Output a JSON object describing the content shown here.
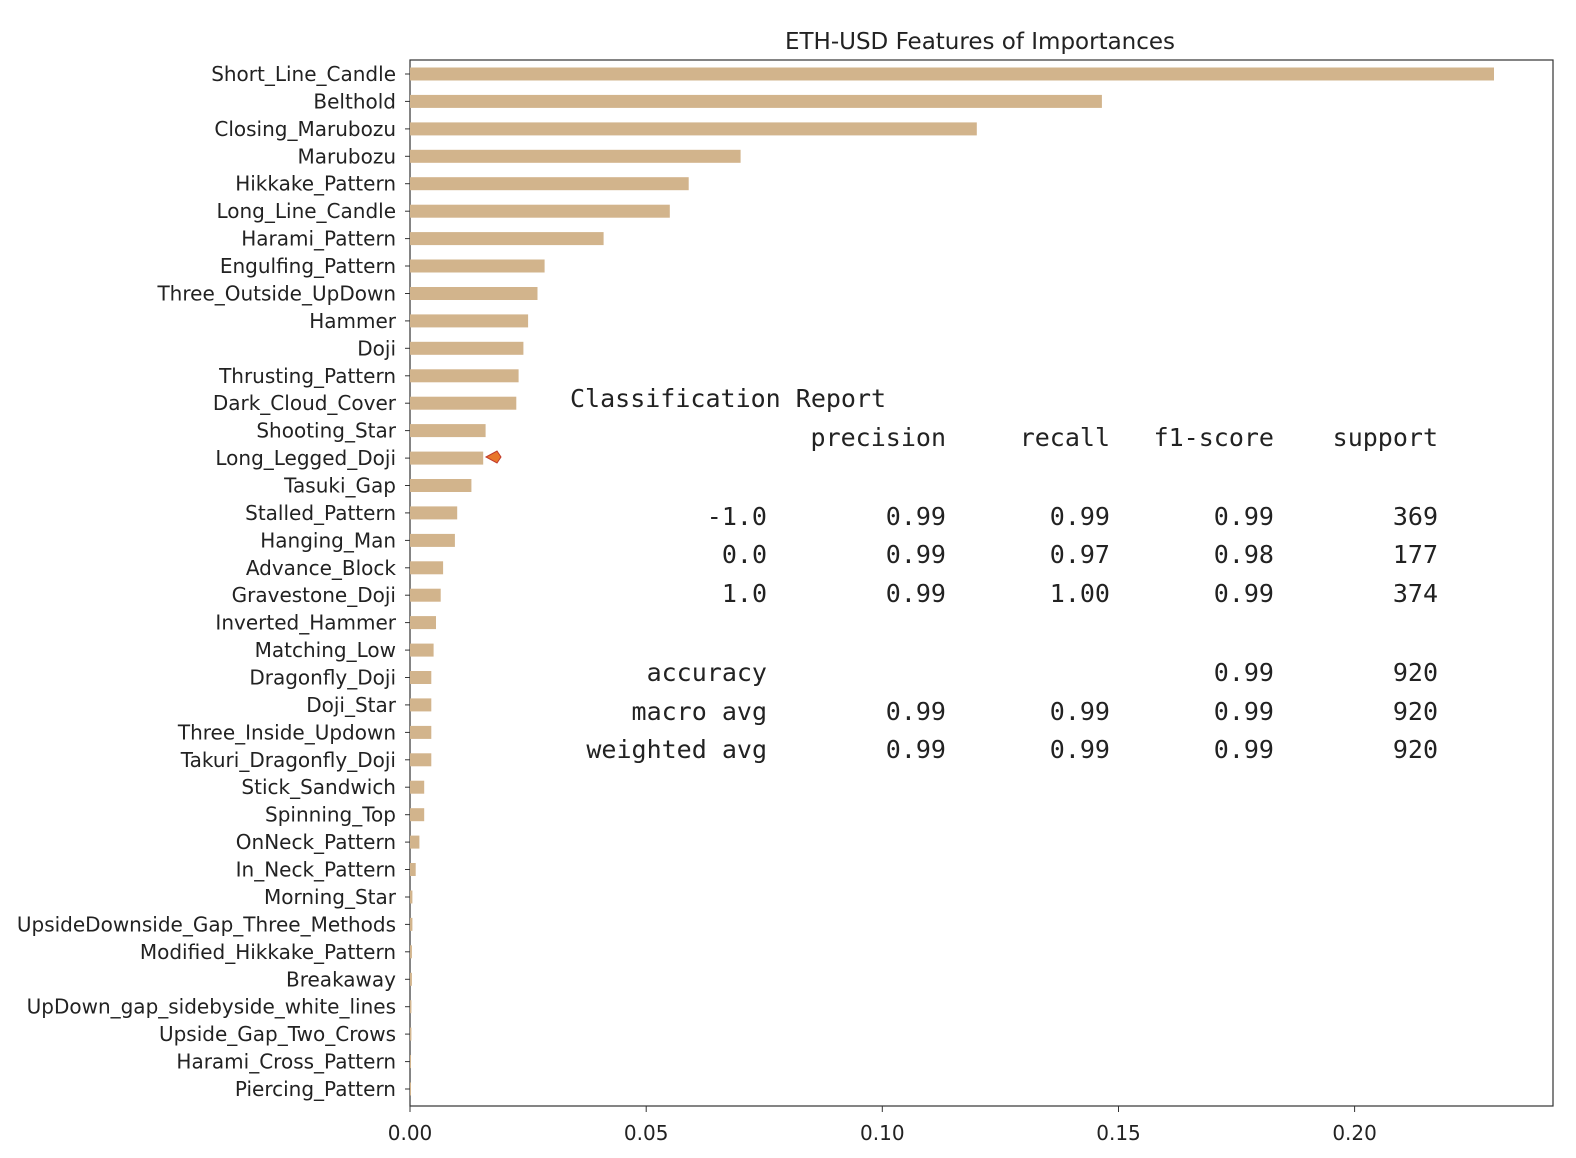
{
  "chart_data": {
    "type": "bar",
    "orientation": "horizontal",
    "title": "ETH-USD Features of Importances",
    "xlabel": "",
    "ylabel": "",
    "xlim": [
      0,
      0.242
    ],
    "xticks": [
      "0.00",
      "0.05",
      "0.10",
      "0.15",
      "0.20"
    ],
    "grid": false,
    "bar_color": "#D2B48C",
    "categories": [
      "Short_Line_Candle",
      "Belthold",
      "Closing_Marubozu",
      "Marubozu",
      "Hikkake_Pattern",
      "Long_Line_Candle",
      "Harami_Pattern",
      "Engulfing_Pattern",
      "Three_Outside_UpDown",
      "Hammer",
      "Doji",
      "Thrusting_Pattern",
      "Dark_Cloud_Cover",
      "Shooting_Star",
      "Long_Legged_Doji",
      "Tasuki_Gap",
      "Stalled_Pattern",
      "Hanging_Man",
      "Advance_Block",
      "Gravestone_Doji",
      "Inverted_Hammer",
      "Matching_Low",
      "Dragonfly_Doji",
      "Doji_Star",
      "Three_Inside_Updown",
      "Takuri_Dragonfly_Doji",
      "Stick_Sandwich",
      "Spinning_Top",
      "OnNeck_Pattern",
      "In_Neck_Pattern",
      "Morning_Star",
      "UpsideDownside_Gap_Three_Methods",
      "Modified_Hikkake_Pattern",
      "Breakaway",
      "UpDown_gap_sidebyside_white_lines",
      "Upside_Gap_Two_Crows",
      "Harami_Cross_Pattern",
      "Piercing_Pattern"
    ],
    "values": [
      0.2295,
      0.1465,
      0.12,
      0.07,
      0.059,
      0.055,
      0.041,
      0.0285,
      0.027,
      0.025,
      0.024,
      0.023,
      0.0225,
      0.016,
      0.0155,
      0.013,
      0.01,
      0.0095,
      0.007,
      0.0065,
      0.0055,
      0.005,
      0.0045,
      0.0045,
      0.0045,
      0.0045,
      0.003,
      0.003,
      0.002,
      0.0012,
      0.0005,
      0.0005,
      0.0004,
      0.0004,
      0.0003,
      0.0003,
      0.0002,
      0.0002
    ]
  },
  "report": {
    "title": "Classification Report",
    "headers": [
      "precision",
      "recall",
      "f1-score",
      "support"
    ],
    "rows": [
      {
        "label": "-1.0",
        "precision": "0.99",
        "recall": "0.99",
        "f1": "0.99",
        "support": "369"
      },
      {
        "label": "0.0",
        "precision": "0.99",
        "recall": "0.97",
        "f1": "0.98",
        "support": "177"
      },
      {
        "label": "1.0",
        "precision": "0.99",
        "recall": "1.00",
        "f1": "0.99",
        "support": "374"
      }
    ],
    "summary": [
      {
        "label": "accuracy",
        "precision": "",
        "recall": "",
        "f1": "0.99",
        "support": "920"
      },
      {
        "label": "macro avg",
        "precision": "0.99",
        "recall": "0.99",
        "f1": "0.99",
        "support": "920"
      },
      {
        "label": "weighted avg",
        "precision": "0.99",
        "recall": "0.99",
        "f1": "0.99",
        "support": "920"
      }
    ]
  }
}
